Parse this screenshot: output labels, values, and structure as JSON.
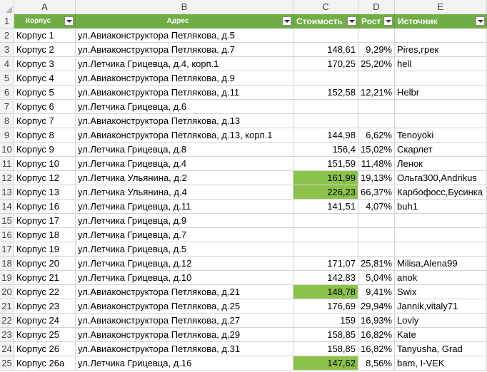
{
  "columns": [
    "A",
    "B",
    "C",
    "D",
    "E"
  ],
  "header": {
    "row_num": "1",
    "korpus": "Корпус",
    "adres": "Адрес",
    "stoimost": "Стоимость",
    "rost": "Рост",
    "istochnik": "Источник"
  },
  "colors": {
    "header_bg": "#70ad47",
    "highlight": "#8bc34a"
  },
  "rows": [
    {
      "n": "2",
      "a": "Корпус 1",
      "b": "ул.Авиаконструктора Петлякова, д.5",
      "c": "",
      "d": "",
      "e": "",
      "hl": false
    },
    {
      "n": "3",
      "a": "Корпус 2",
      "b": "ул.Авиаконструктора Петлякова, д.7",
      "c": "148,61",
      "d": "9,29%",
      "e": "Pires,грек",
      "hl": false
    },
    {
      "n": "4",
      "a": "Корпус 3",
      "b": "ул.Летчика Грицевца, д.4, корп.1",
      "c": "170,25",
      "d": "25,20%",
      "e": "hell",
      "hl": false
    },
    {
      "n": "5",
      "a": "Корпус 4",
      "b": "ул.Авиаконструктора Петлякова, д.9",
      "c": "",
      "d": "",
      "e": "",
      "hl": false
    },
    {
      "n": "6",
      "a": "Корпус 5",
      "b": "ул.Авиаконструктора Петлякова, д.11",
      "c": "152,58",
      "d": "12,21%",
      "e": "Helbr",
      "hl": false
    },
    {
      "n": "7",
      "a": "Корпус 6",
      "b": "ул.Летчика Грицевца, д.6",
      "c": "",
      "d": "",
      "e": "",
      "hl": false
    },
    {
      "n": "8",
      "a": "Корпус 7",
      "b": "ул.Авиаконструктора Петлякова, д.13",
      "c": "",
      "d": "",
      "e": "",
      "hl": false
    },
    {
      "n": "9",
      "a": "Корпус 8",
      "b": "ул.Авиаконструктора Петлякова, д.13, корп.1",
      "c": "144,98",
      "d": "6,62%",
      "e": "Tenoyoki",
      "hl": false
    },
    {
      "n": "10",
      "a": "Корпус 9",
      "b": "ул.Летчика Грицевца, д.8",
      "c": "156,4",
      "d": "15,02%",
      "e": "Скарлет",
      "hl": false
    },
    {
      "n": "11",
      "a": "Корпус 10",
      "b": "ул.Летчика Грицевца, д.4",
      "c": "151,59",
      "d": "11,48%",
      "e": "Ленок",
      "hl": false
    },
    {
      "n": "12",
      "a": "Корпус 12",
      "b": "ул.Летчика Ульянина, д.2",
      "c": "161,99",
      "d": "19,13%",
      "e": "Ольга300,Andrikus",
      "hl": true
    },
    {
      "n": "13",
      "a": "Корпус 13",
      "b": "ул.Летчика Ульянина, д.4",
      "c": "226,23",
      "d": "66,37%",
      "e": "Карбофосс,Бусинка",
      "hl": true
    },
    {
      "n": "14",
      "a": "Корпус 16",
      "b": "ул.Летчика Грицевца, д.11",
      "c": "141,51",
      "d": "4,07%",
      "e": "buh1",
      "hl": false
    },
    {
      "n": "15",
      "a": "Корпус 17",
      "b": "ул.Летчика Грицевца, д.9",
      "c": "",
      "d": "",
      "e": "",
      "hl": false
    },
    {
      "n": "16",
      "a": "Корпус 18",
      "b": "ул.Летчика Грицевца, д.7",
      "c": "",
      "d": "",
      "e": "",
      "hl": false
    },
    {
      "n": "17",
      "a": "Корпус 19",
      "b": "ул.Летчика Грицевца, д.5",
      "c": "",
      "d": "",
      "e": "",
      "hl": false
    },
    {
      "n": "18",
      "a": "Корпус 20",
      "b": "ул.Летчика Грицевца, д.12",
      "c": "171,07",
      "d": "25,81%",
      "e": "Milisa,Alena99",
      "hl": false
    },
    {
      "n": "19",
      "a": "Корпус 21",
      "b": "ул.Летчика Грицевца, д.10",
      "c": "142,83",
      "d": "5,04%",
      "e": "anok",
      "hl": false
    },
    {
      "n": "20",
      "a": "Корпус 22",
      "b": "ул.Авиаконструктора Петлякова, д.21",
      "c": "148,78",
      "d": "9,41%",
      "e": "Swix",
      "hl": true
    },
    {
      "n": "21",
      "a": "Корпус 23",
      "b": "ул.Авиаконструктора Петлякова, д.25",
      "c": "176,69",
      "d": "29,94%",
      "e": "Jannik,vitaly71",
      "hl": false
    },
    {
      "n": "22",
      "a": "Корпус 24",
      "b": "ул.Авиаконструктора Петлякова, д.27",
      "c": "159",
      "d": "16,93%",
      "e": "Lovly",
      "hl": false
    },
    {
      "n": "23",
      "a": "Корпус 25",
      "b": "ул.Авиаконструктора Петлякова, д.29",
      "c": "158,85",
      "d": "16,82%",
      "e": "Kate",
      "hl": false
    },
    {
      "n": "24",
      "a": "Корпус 26",
      "b": "ул.Авиаконструктора Петлякова, д.31",
      "c": "158,85",
      "d": "16,82%",
      "e": "Tanyusha, Grad",
      "hl": false
    },
    {
      "n": "25",
      "a": "Корпус 26а",
      "b": "ул.Летчика Грицевца, д.16",
      "c": "147,62",
      "d": "8,56%",
      "e": "bam, I-VEK",
      "hl": true
    }
  ]
}
